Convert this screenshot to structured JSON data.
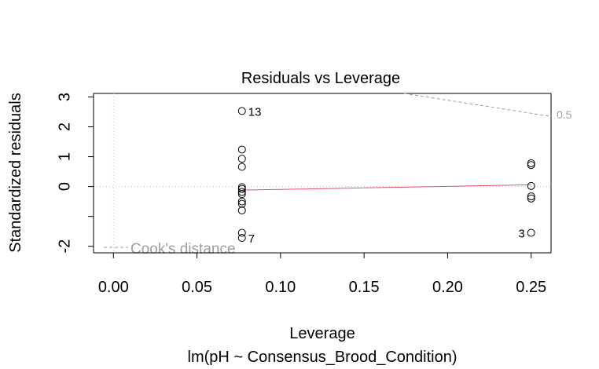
{
  "chart_data": {
    "type": "scatter",
    "title": "Residuals vs Leverage",
    "xlabel": "Leverage",
    "subtitle": "lm(pH ~ Consensus_Brood_Condition)",
    "ylabel": "Standardized residuals",
    "xlim": [
      -0.0119,
      0.2619
    ],
    "ylim": [
      -2.219,
      3.119
    ],
    "x_ticks": [
      {
        "value": 0.0,
        "label": "0.00"
      },
      {
        "value": 0.05,
        "label": "0.05"
      },
      {
        "value": 0.1,
        "label": "0.10"
      },
      {
        "value": 0.15,
        "label": "0.15"
      },
      {
        "value": 0.2,
        "label": "0.20"
      },
      {
        "value": 0.25,
        "label": "0.25"
      }
    ],
    "y_ticks": [
      {
        "value": 3,
        "label": "3"
      },
      {
        "value": 2,
        "label": "2"
      },
      {
        "value": 1,
        "label": "1"
      },
      {
        "value": 0,
        "label": "0"
      },
      {
        "value": -1,
        "label": ""
      },
      {
        "value": -2,
        "label": "-2"
      }
    ],
    "points": [
      {
        "x": 0.0769,
        "y": 2.53,
        "label": "13"
      },
      {
        "x": 0.0769,
        "y": 1.24
      },
      {
        "x": 0.0769,
        "y": 0.93
      },
      {
        "x": 0.0769,
        "y": 0.66
      },
      {
        "x": 0.0769,
        "y": -0.02
      },
      {
        "x": 0.0769,
        "y": -0.08
      },
      {
        "x": 0.0769,
        "y": -0.18
      },
      {
        "x": 0.0769,
        "y": -0.25
      },
      {
        "x": 0.0769,
        "y": -0.5
      },
      {
        "x": 0.0769,
        "y": -0.58
      },
      {
        "x": 0.0769,
        "y": -0.8
      },
      {
        "x": 0.0769,
        "y": -1.55
      },
      {
        "x": 0.0769,
        "y": -1.72,
        "label": "7"
      },
      {
        "x": 0.25,
        "y": 0.78
      },
      {
        "x": 0.25,
        "y": 0.72
      },
      {
        "x": 0.25,
        "y": 0.02
      },
      {
        "x": 0.25,
        "y": -0.33
      },
      {
        "x": 0.25,
        "y": -0.4
      },
      {
        "x": 0.25,
        "y": -1.55,
        "label": "3"
      }
    ],
    "smooth_line": {
      "color": "#DF536B",
      "x": [
        0.0769,
        0.25
      ],
      "y": [
        -0.12,
        0.06
      ]
    },
    "cooks_distance": {
      "legend_label": "Cook's distance",
      "contour_label": "0.5",
      "color": "#9E9E9E",
      "x": [
        0.174,
        0.2619
      ],
      "y": [
        3.119,
        2.35
      ]
    },
    "reference_line_color": "#BEBEBE",
    "grid": false,
    "legend": "bottom-left"
  }
}
